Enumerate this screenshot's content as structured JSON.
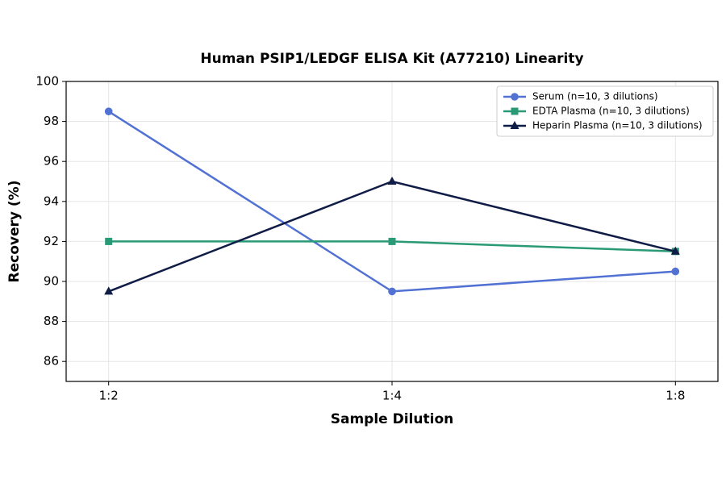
{
  "chart_data": {
    "type": "line",
    "title": "Human PSIP1/LEDGF ELISA Kit (A77210) Linearity",
    "x_label": "Sample Dilution",
    "y_label": "Recovery (%)",
    "categories": [
      "1:2",
      "1:4",
      "1:8"
    ],
    "series": [
      {
        "name": "Serum (n=10, 3 dilutions)",
        "color": "#5171d3",
        "marker": "circle",
        "values": [
          98.5,
          89.5,
          90.5
        ]
      },
      {
        "name": "EDTA Plasma (n=10, 3 dilutions)",
        "color": "#2a9a76",
        "marker": "square",
        "values": [
          92,
          92,
          91.5
        ]
      },
      {
        "name": "Heparin Plasma (n=10, 3 dilutions)",
        "color": "#0f1c45",
        "marker": "triangle",
        "values": [
          89.5,
          95,
          91.5
        ]
      }
    ],
    "ylim": [
      85,
      100
    ],
    "yticks": [
      86,
      88,
      90,
      92,
      94,
      96,
      98,
      100
    ],
    "grid": true,
    "legend": "upper-right"
  }
}
